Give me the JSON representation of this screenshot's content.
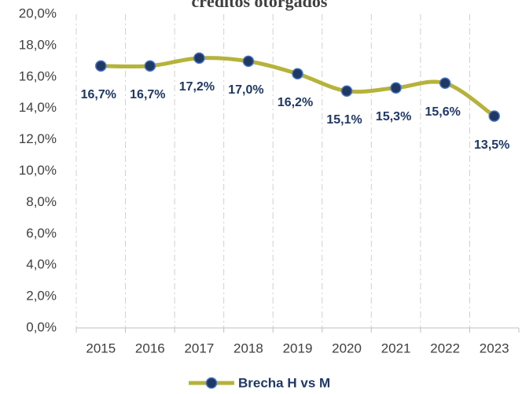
{
  "chart_data": {
    "type": "line",
    "title": "créditos otorgados",
    "categories": [
      "2015",
      "2016",
      "2017",
      "2018",
      "2019",
      "2020",
      "2021",
      "2022",
      "2023"
    ],
    "series": [
      {
        "name": "Brecha H vs M",
        "color": "#b5b33a",
        "marker_color": "#1f3864",
        "values": [
          16.7,
          16.7,
          17.2,
          17.0,
          16.2,
          15.1,
          15.3,
          15.6,
          13.5
        ],
        "value_labels": [
          "16,7%",
          "16,7%",
          "17,2%",
          "17,0%",
          "16,2%",
          "15,1%",
          "15,3%",
          "15,6%",
          "13,5%"
        ]
      }
    ],
    "ylim": [
      0,
      20
    ],
    "yticks": [
      {
        "value": 0,
        "label": "0,0%"
      },
      {
        "value": 2,
        "label": "2,0%"
      },
      {
        "value": 4,
        "label": "4,0%"
      },
      {
        "value": 6,
        "label": "6,0%"
      },
      {
        "value": 8,
        "label": "8,0%"
      },
      {
        "value": 10,
        "label": "10,0%"
      },
      {
        "value": 12,
        "label": "12,0%"
      },
      {
        "value": 14,
        "label": "14,0%"
      },
      {
        "value": 16,
        "label": "16,0%"
      },
      {
        "value": 18,
        "label": "18,0%"
      },
      {
        "value": 20,
        "label": "20,0%"
      }
    ],
    "grid": "vertical",
    "legend": "bottom"
  }
}
